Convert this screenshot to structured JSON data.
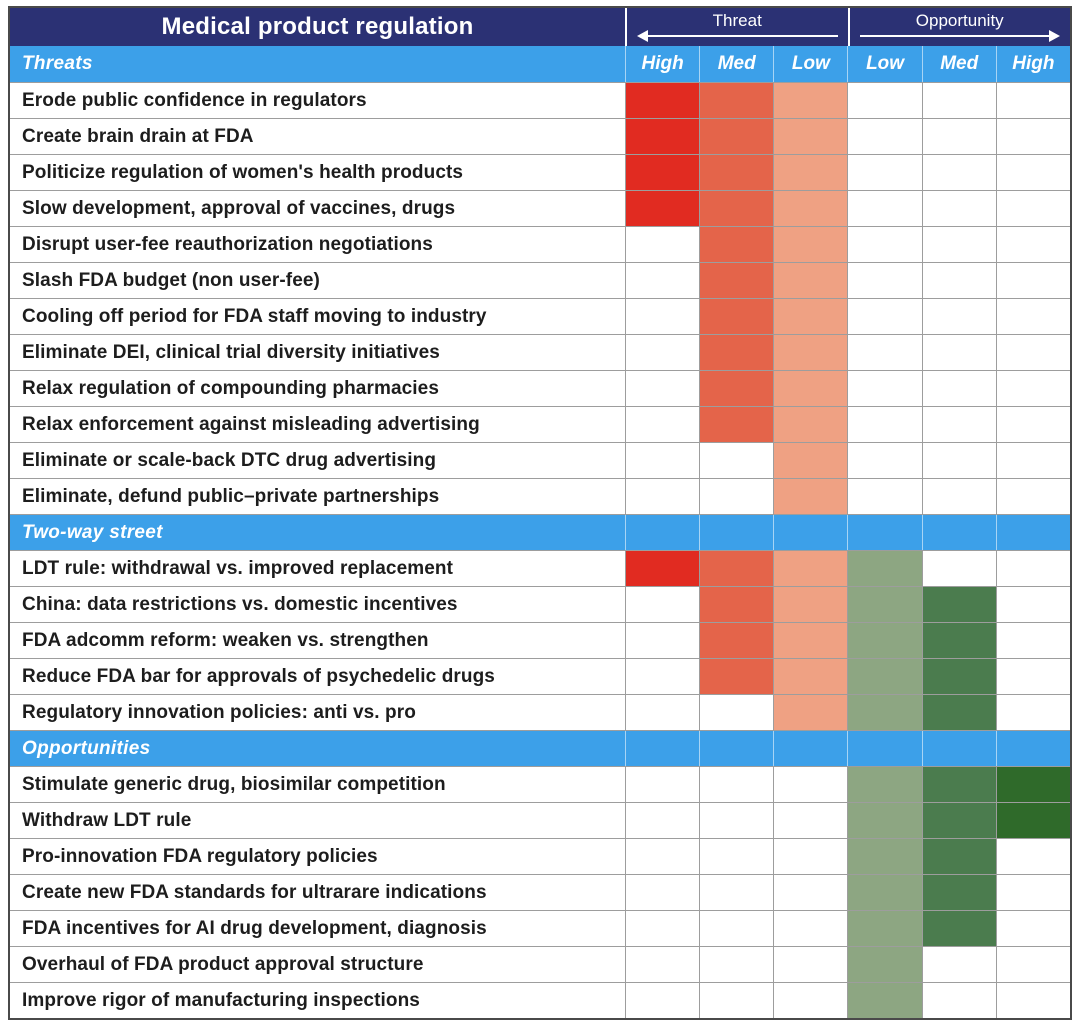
{
  "colors": {
    "ui": {
      "navy": "#2b3174",
      "blue": "#3ca0e9",
      "grid": "#9d9d9d",
      "border": "#4a4a4a",
      "text": "#1d1d1d",
      "white": "#ffffff"
    },
    "cells": {
      "TH": "#e12b21",
      "TM": "#e4644a",
      "TL": "#efa183",
      "OL": "#8da682",
      "OM": "#4b7c4e",
      "OH": "#2f6a2a"
    }
  },
  "chart_data": {
    "type": "heatmap",
    "title": "Medical product regulation",
    "group_headers": [
      "Threat",
      "Opportunity"
    ],
    "column_headers": [
      "High",
      "Med",
      "Low",
      "Low",
      "Med",
      "High"
    ],
    "legend": {
      "TH": "Threat High (bright red)",
      "TM": "Threat Med (orange red)",
      "TL": "Threat Low (salmon)",
      "OL": "Opportunity Low (light sage green)",
      "OM": "Opportunity Med (medium green)",
      "OH": "Opportunity High (dark green)",
      "": "empty (white)"
    },
    "sections": [
      {
        "label": "Threats",
        "rows": [
          {
            "label": "Erode public confidence in regulators",
            "cells": [
              "TH",
              "TM",
              "TL",
              "",
              "",
              ""
            ]
          },
          {
            "label": "Create brain drain at FDA",
            "cells": [
              "TH",
              "TM",
              "TL",
              "",
              "",
              ""
            ]
          },
          {
            "label": "Politicize regulation of women's health products",
            "cells": [
              "TH",
              "TM",
              "TL",
              "",
              "",
              ""
            ]
          },
          {
            "label": "Slow development, approval of vaccines, drugs",
            "cells": [
              "TH",
              "TM",
              "TL",
              "",
              "",
              ""
            ]
          },
          {
            "label": "Disrupt user-fee reauthorization negotiations",
            "cells": [
              "",
              "TM",
              "TL",
              "",
              "",
              ""
            ]
          },
          {
            "label": "Slash FDA budget (non user-fee)",
            "cells": [
              "",
              "TM",
              "TL",
              "",
              "",
              ""
            ]
          },
          {
            "label": "Cooling off period for FDA staff moving to industry",
            "cells": [
              "",
              "TM",
              "TL",
              "",
              "",
              ""
            ]
          },
          {
            "label": "Eliminate DEI, clinical trial diversity initiatives",
            "cells": [
              "",
              "TM",
              "TL",
              "",
              "",
              ""
            ]
          },
          {
            "label": "Relax regulation of compounding pharmacies",
            "cells": [
              "",
              "TM",
              "TL",
              "",
              "",
              ""
            ]
          },
          {
            "label": "Relax enforcement against misleading advertising",
            "cells": [
              "",
              "TM",
              "TL",
              "",
              "",
              ""
            ]
          },
          {
            "label": "Eliminate or scale-back DTC drug advertising",
            "cells": [
              "",
              "",
              "TL",
              "",
              "",
              ""
            ]
          },
          {
            "label": "Eliminate, defund public–private partnerships",
            "cells": [
              "",
              "",
              "TL",
              "",
              "",
              ""
            ]
          }
        ]
      },
      {
        "label": "Two-way street",
        "rows": [
          {
            "label": "LDT rule: withdrawal vs. improved replacement",
            "cells": [
              "TH",
              "TM",
              "TL",
              "OL",
              "",
              ""
            ]
          },
          {
            "label": "China: data restrictions vs. domestic incentives",
            "cells": [
              "",
              "TM",
              "TL",
              "OL",
              "OM",
              ""
            ]
          },
          {
            "label": "FDA adcomm reform: weaken vs. strengthen",
            "cells": [
              "",
              "TM",
              "TL",
              "OL",
              "OM",
              ""
            ]
          },
          {
            "label": "Reduce FDA bar for approvals of psychedelic drugs",
            "cells": [
              "",
              "TM",
              "TL",
              "OL",
              "OM",
              ""
            ]
          },
          {
            "label": "Regulatory innovation policies: anti vs. pro",
            "cells": [
              "",
              "",
              "TL",
              "OL",
              "OM",
              ""
            ]
          }
        ]
      },
      {
        "label": "Opportunities",
        "rows": [
          {
            "label": "Stimulate generic drug, biosimilar competition",
            "cells": [
              "",
              "",
              "",
              "OL",
              "OM",
              "OH"
            ]
          },
          {
            "label": "Withdraw LDT rule",
            "cells": [
              "",
              "",
              "",
              "OL",
              "OM",
              "OH"
            ]
          },
          {
            "label": "Pro-innovation FDA regulatory policies",
            "cells": [
              "",
              "",
              "",
              "OL",
              "OM",
              ""
            ]
          },
          {
            "label": "Create new FDA standards for ultrarare indications",
            "cells": [
              "",
              "",
              "",
              "OL",
              "OM",
              ""
            ]
          },
          {
            "label": "FDA incentives for AI drug development, diagnosis",
            "cells": [
              "",
              "",
              "",
              "OL",
              "OM",
              ""
            ]
          },
          {
            "label": "Overhaul of FDA product approval structure",
            "cells": [
              "",
              "",
              "",
              "OL",
              "",
              ""
            ]
          },
          {
            "label": "Improve rigor of manufacturing inspections",
            "cells": [
              "",
              "",
              "",
              "OL",
              "",
              ""
            ]
          }
        ]
      }
    ]
  }
}
